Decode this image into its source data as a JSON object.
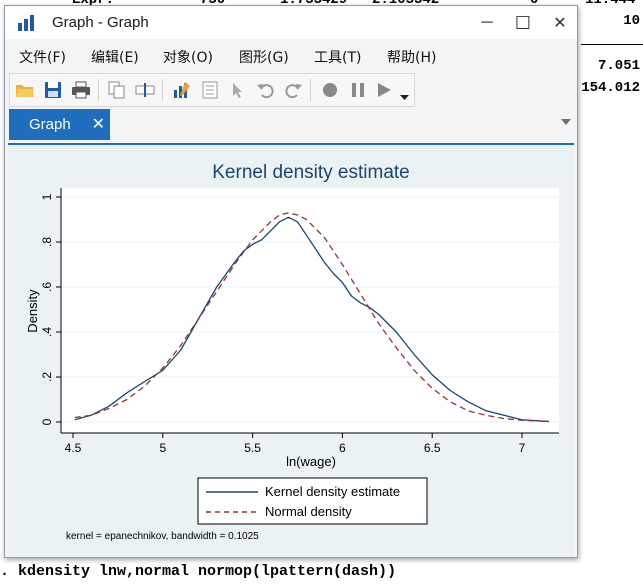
{
  "background": {
    "top_fragments": [
      "Expr.",
      "730",
      "1.733429",
      "2.103342",
      "0",
      "11.444"
    ],
    "right_values": [
      "10",
      "7.051",
      "154.012"
    ],
    "command": ". kdensity lnw,normal normop(lpattern(dash))"
  },
  "window": {
    "title": "Graph - Graph",
    "controls": {
      "minimize": "─",
      "maximize": "☐",
      "close": "✕"
    }
  },
  "menu": [
    "文件(F)",
    "编辑(E)",
    "对象(O)",
    "图形(G)",
    "工具(T)",
    "帮助(H)"
  ],
  "toolbar": {
    "icons": [
      "open-folder-icon",
      "save-icon",
      "print-icon",
      "copy-icon",
      "rename-icon",
      "graph-editor-icon",
      "properties-icon",
      "pointer-icon",
      "undo-icon",
      "redo-icon",
      "record-icon",
      "pause-icon",
      "play-icon",
      "dropdown-arrow-icon"
    ]
  },
  "tab": {
    "label": "Graph",
    "close": "✕"
  },
  "chart_data": {
    "type": "line",
    "title": "Kernel density estimate",
    "xlabel": "ln(wage)",
    "ylabel": "Density",
    "xlim": [
      4.5,
      7.15
    ],
    "ylim": [
      0,
      1
    ],
    "xticks": [
      4.5,
      5,
      5.5,
      6,
      6.5,
      7
    ],
    "xtick_labels": [
      "4.5",
      "5",
      "5.5",
      "6",
      "6.5",
      "7"
    ],
    "yticks": [
      0,
      0.2,
      0.4,
      0.6,
      0.8,
      1
    ],
    "ytick_labels": [
      "0",
      ".2",
      ".4",
      ".6",
      ".8",
      "1"
    ],
    "grid": "horizontal",
    "legend_position": "bottom",
    "note": "kernel = epanechnikov, bandwidth = 0.1025",
    "series": [
      {
        "name": "Kernel density estimate",
        "style": "solid",
        "color": "#1a476f",
        "x": [
          4.51,
          4.6,
          4.7,
          4.8,
          4.9,
          5.0,
          5.1,
          5.2,
          5.3,
          5.4,
          5.45,
          5.5,
          5.55,
          5.6,
          5.65,
          5.7,
          5.75,
          5.8,
          5.85,
          5.9,
          5.95,
          6.0,
          6.05,
          6.1,
          6.15,
          6.2,
          6.3,
          6.4,
          6.5,
          6.6,
          6.7,
          6.8,
          6.9,
          7.0,
          7.1,
          7.15
        ],
        "y": [
          0.01,
          0.03,
          0.07,
          0.13,
          0.18,
          0.23,
          0.32,
          0.46,
          0.6,
          0.71,
          0.76,
          0.79,
          0.81,
          0.85,
          0.89,
          0.91,
          0.89,
          0.83,
          0.77,
          0.71,
          0.66,
          0.62,
          0.56,
          0.53,
          0.51,
          0.48,
          0.4,
          0.3,
          0.21,
          0.14,
          0.09,
          0.05,
          0.03,
          0.01,
          0.005,
          0.003
        ]
      },
      {
        "name": "Normal density",
        "style": "dash",
        "color": "#90353b",
        "mean": 5.72,
        "sd": 0.43,
        "x": [
          4.51,
          4.6,
          4.7,
          4.8,
          4.9,
          5.0,
          5.1,
          5.2,
          5.3,
          5.4,
          5.5,
          5.6,
          5.65,
          5.7,
          5.75,
          5.8,
          5.9,
          6.0,
          6.1,
          6.2,
          6.3,
          6.4,
          6.5,
          6.6,
          6.7,
          6.8,
          6.9,
          7.0,
          7.1,
          7.15
        ],
        "y": [
          0.02,
          0.03,
          0.06,
          0.1,
          0.16,
          0.24,
          0.34,
          0.46,
          0.58,
          0.7,
          0.81,
          0.89,
          0.92,
          0.93,
          0.92,
          0.9,
          0.82,
          0.7,
          0.57,
          0.44,
          0.33,
          0.23,
          0.15,
          0.09,
          0.05,
          0.03,
          0.015,
          0.008,
          0.004,
          0.002
        ]
      }
    ]
  }
}
